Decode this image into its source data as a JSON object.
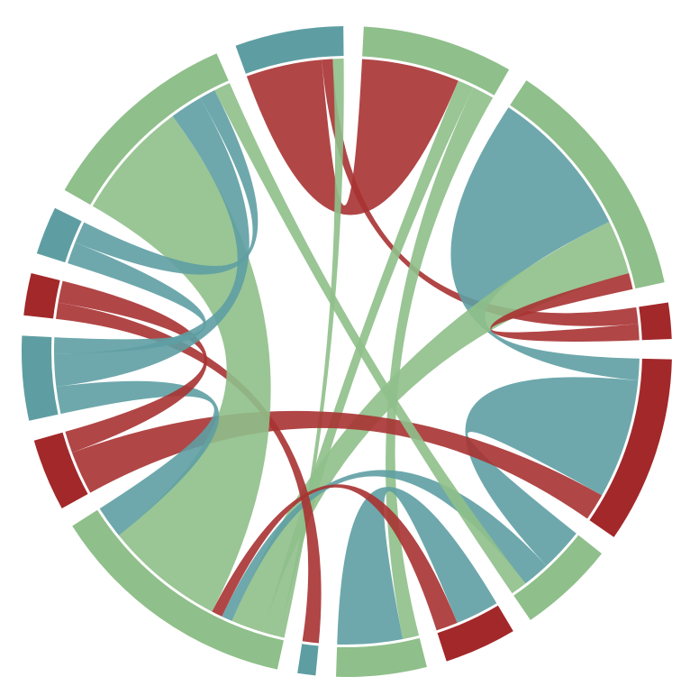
{
  "chart_data": {
    "type": "chord",
    "groups": [
      {
        "color": "#5e9ea3"
      },
      {
        "color": "#8fbf8a"
      },
      {
        "color": "#8fbf8a"
      },
      {
        "color": "#a3282a"
      },
      {
        "color": "#a3282a"
      },
      {
        "color": "#8fbf8a"
      },
      {
        "color": "#a3282a"
      },
      {
        "color": "#8fbf8a"
      },
      {
        "color": "#5e9ea3"
      },
      {
        "color": "#8fbf8a"
      },
      {
        "color": "#a3282a"
      },
      {
        "color": "#5e9ea3"
      },
      {
        "color": "#a3282a"
      },
      {
        "color": "#5e9ea3"
      },
      {
        "color": "#8fbf8a"
      }
    ],
    "chords": [
      {
        "source": 0,
        "target": 1,
        "source_value": 14,
        "target_value": 18,
        "color": "#a83232"
      },
      {
        "source": 0,
        "target": 3,
        "source_value": 2,
        "target_value": 3,
        "color": "#a83232"
      },
      {
        "source": 0,
        "target": 9,
        "source_value": 2,
        "target_value": 1,
        "color": "#8fbf8a"
      },
      {
        "source": 1,
        "target": 9,
        "source_value": 3,
        "target_value": 3,
        "color": "#8fbf8a"
      },
      {
        "source": 1,
        "target": 7,
        "source_value": 4,
        "target_value": 3,
        "color": "#8fbf8a"
      },
      {
        "source": 2,
        "target": 4,
        "source_value": 28,
        "target_value": 4,
        "color": "#5e9ea3"
      },
      {
        "source": 2,
        "target": 9,
        "source_value": 10,
        "target_value": 6,
        "color": "#8fbf8a"
      },
      {
        "source": 3,
        "target": 2,
        "source_value": 3,
        "target_value": 3,
        "color": "#a83232"
      },
      {
        "source": 4,
        "target": 5,
        "source_value": 22,
        "target_value": 8,
        "color": "#5e9ea3"
      },
      {
        "source": 4,
        "target": 10,
        "source_value": 5,
        "target_value": 8,
        "color": "#a83232"
      },
      {
        "source": 5,
        "target": 9,
        "source_value": 5,
        "target_value": 2,
        "color": "#5e9ea3"
      },
      {
        "source": 6,
        "target": 7,
        "source_value": 8,
        "target_value": 12,
        "color": "#5e9ea3"
      },
      {
        "source": 6,
        "target": 9,
        "source_value": 4,
        "target_value": 2,
        "color": "#a83232"
      },
      {
        "source": 8,
        "target": 12,
        "source_value": 3,
        "target_value": 3,
        "color": "#a83232"
      },
      {
        "source": 9,
        "target": 14,
        "source_value": 22,
        "target_value": 22,
        "color": "#8fbf8a"
      },
      {
        "source": 9,
        "target": 11,
        "source_value": 6,
        "target_value": 5,
        "color": "#5e9ea3"
      },
      {
        "source": 10,
        "target": 12,
        "source_value": 4,
        "target_value": 4,
        "color": "#a83232"
      },
      {
        "source": 11,
        "target": 14,
        "source_value": 6,
        "target_value": 6,
        "color": "#5e9ea3"
      },
      {
        "source": 11,
        "target": 13,
        "source_value": 3,
        "target_value": 4,
        "color": "#5e9ea3"
      },
      {
        "source": 13,
        "target": 14,
        "source_value": 4,
        "target_value": 3,
        "color": "#5e9ea3"
      },
      {
        "source": 14,
        "target": 5,
        "source_value": 3,
        "target_value": 3,
        "color": "#8fbf8a"
      }
    ]
  }
}
